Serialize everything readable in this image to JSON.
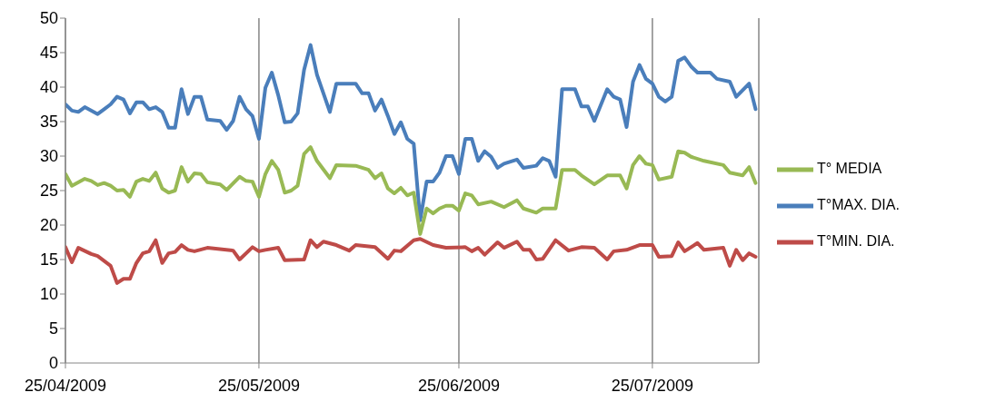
{
  "chart_data": {
    "type": "line",
    "xlim": [
      "2009-04-25",
      "2009-08-10T12:00"
    ],
    "xticks": [
      {
        "value": "2009-04-25",
        "label": "25/04/2009"
      },
      {
        "value": "2009-05-25",
        "label": "25/05/2009"
      },
      {
        "value": "2009-06-25",
        "label": "25/06/2009"
      },
      {
        "value": "2009-07-25",
        "label": "25/07/2009"
      }
    ],
    "ylim": [
      0,
      50
    ],
    "yticks": [
      0,
      5,
      10,
      15,
      20,
      25,
      30,
      35,
      40,
      45,
      50
    ],
    "grid": "x",
    "legend": "right",
    "marker": "none",
    "line_style": "solid",
    "series": [
      {
        "name": "T°MAX. DIA.",
        "color": "#4a7ebb",
        "x": [
          "2009-04-25",
          "2009-04-26",
          "2009-04-27",
          "2009-04-28",
          "2009-04-30",
          "2009-05-01",
          "2009-05-02",
          "2009-05-03",
          "2009-05-04",
          "2009-05-05",
          "2009-05-06",
          "2009-05-07",
          "2009-05-08",
          "2009-05-09",
          "2009-05-10",
          "2009-05-11",
          "2009-05-12",
          "2009-05-13",
          "2009-05-14",
          "2009-05-15",
          "2009-05-16",
          "2009-05-17",
          "2009-05-19",
          "2009-05-20",
          "2009-05-21",
          "2009-05-22",
          "2009-05-23",
          "2009-05-24",
          "2009-05-25",
          "2009-05-26",
          "2009-05-27",
          "2009-05-28",
          "2009-05-29",
          "2009-05-30",
          "2009-05-31",
          "2009-06-01",
          "2009-06-02",
          "2009-06-03",
          "2009-06-05",
          "2009-06-06",
          "2009-06-09",
          "2009-06-10",
          "2009-06-11",
          "2009-06-12",
          "2009-06-13",
          "2009-06-14",
          "2009-06-15",
          "2009-06-16",
          "2009-06-17",
          "2009-06-18",
          "2009-06-19",
          "2009-06-20",
          "2009-06-21",
          "2009-06-22",
          "2009-06-23",
          "2009-06-24",
          "2009-06-25",
          "2009-06-26",
          "2009-06-27",
          "2009-06-28",
          "2009-06-29",
          "2009-06-30",
          "2009-07-01",
          "2009-07-02",
          "2009-07-04",
          "2009-07-05",
          "2009-07-07",
          "2009-07-08",
          "2009-07-09",
          "2009-07-10",
          "2009-07-11",
          "2009-07-13",
          "2009-07-14",
          "2009-07-15",
          "2009-07-16",
          "2009-07-18",
          "2009-07-19",
          "2009-07-20",
          "2009-07-21",
          "2009-07-22",
          "2009-07-23",
          "2009-07-24",
          "2009-07-25",
          "2009-07-26",
          "2009-07-27",
          "2009-07-28",
          "2009-07-29",
          "2009-07-30",
          "2009-07-31",
          "2009-08-01",
          "2009-08-03",
          "2009-08-04",
          "2009-08-06",
          "2009-08-07",
          "2009-08-09",
          "2009-08-10"
        ],
        "values": [
          37.5,
          36.6,
          36.4,
          37.1,
          36.1,
          36.8,
          37.5,
          38.6,
          38.2,
          36.2,
          37.8,
          37.8,
          36.8,
          37.1,
          36.4,
          34.1,
          34.1,
          39.7,
          36.1,
          38.6,
          38.6,
          35.3,
          35.1,
          33.8,
          35.1,
          38.6,
          36.8,
          35.8,
          32.5,
          39.9,
          42.1,
          38.8,
          34.9,
          35.0,
          36.2,
          42.5,
          46.1,
          41.8,
          36.4,
          40.5,
          40.5,
          39.1,
          39.1,
          36.6,
          38.2,
          35.8,
          33.2,
          34.9,
          32.5,
          31.8,
          20.7,
          26.3,
          26.3,
          27.6,
          30.0,
          30.0,
          27.4,
          32.5,
          32.5,
          29.3,
          30.7,
          29.9,
          28.3,
          28.9,
          29.5,
          28.3,
          28.6,
          29.7,
          29.3,
          27.0,
          39.7,
          39.7,
          37.2,
          37.2,
          35.1,
          39.7,
          38.6,
          38.2,
          34.2,
          40.8,
          43.2,
          41.2,
          40.5,
          38.6,
          37.9,
          38.6,
          43.8,
          44.3,
          43.0,
          42.1,
          42.1,
          41.2,
          40.8,
          38.6,
          40.5,
          36.8
        ]
      },
      {
        "name": "T°MIN. DIA.",
        "color": "#be4b48",
        "x": [
          "2009-04-25",
          "2009-04-26",
          "2009-04-27",
          "2009-04-29",
          "2009-04-30",
          "2009-05-02",
          "2009-05-03",
          "2009-05-04",
          "2009-05-05",
          "2009-05-06",
          "2009-05-07",
          "2009-05-08",
          "2009-05-09",
          "2009-05-10",
          "2009-05-11",
          "2009-05-12",
          "2009-05-13",
          "2009-05-14",
          "2009-05-15",
          "2009-05-17",
          "2009-05-21",
          "2009-05-22",
          "2009-05-24",
          "2009-05-25",
          "2009-05-26",
          "2009-05-28",
          "2009-05-29",
          "2009-06-01",
          "2009-06-02",
          "2009-06-03",
          "2009-06-04",
          "2009-06-06",
          "2009-06-08",
          "2009-06-09",
          "2009-06-12",
          "2009-06-14",
          "2009-06-15",
          "2009-06-16",
          "2009-06-18",
          "2009-06-19",
          "2009-06-21",
          "2009-06-23",
          "2009-06-26",
          "2009-06-27",
          "2009-06-28",
          "2009-06-29",
          "2009-07-01",
          "2009-07-02",
          "2009-07-04",
          "2009-07-05",
          "2009-07-06",
          "2009-07-07",
          "2009-07-08",
          "2009-07-10",
          "2009-07-12",
          "2009-07-14",
          "2009-07-16",
          "2009-07-18",
          "2009-07-19",
          "2009-07-21",
          "2009-07-23",
          "2009-07-25",
          "2009-07-26",
          "2009-07-28",
          "2009-07-29",
          "2009-07-30",
          "2009-08-01",
          "2009-08-02",
          "2009-08-05",
          "2009-08-06",
          "2009-08-07",
          "2009-08-08",
          "2009-08-09",
          "2009-08-10"
        ],
        "values": [
          16.8,
          14.6,
          16.7,
          15.8,
          15.5,
          14.1,
          11.6,
          12.2,
          12.2,
          14.5,
          15.9,
          16.2,
          17.8,
          14.5,
          15.9,
          16.1,
          17.1,
          16.4,
          16.2,
          16.7,
          16.3,
          15.0,
          16.8,
          16.2,
          16.4,
          16.7,
          14.9,
          15.0,
          17.8,
          16.8,
          17.6,
          17.1,
          16.3,
          17.1,
          16.8,
          15.1,
          16.3,
          16.2,
          17.8,
          18.0,
          17.1,
          16.7,
          16.8,
          16.2,
          16.7,
          15.7,
          17.5,
          16.7,
          17.6,
          16.4,
          16.4,
          15.0,
          15.1,
          17.8,
          16.3,
          16.8,
          16.7,
          15.0,
          16.2,
          16.4,
          17.1,
          17.1,
          15.4,
          15.5,
          17.5,
          16.2,
          17.4,
          16.4,
          16.7,
          14.1,
          16.4,
          14.9,
          15.9,
          15.4
        ]
      },
      {
        "name": "T° MEDIA",
        "color": "#98b954",
        "x": [
          "2009-04-25",
          "2009-04-26",
          "2009-04-28",
          "2009-04-29",
          "2009-04-30",
          "2009-05-01",
          "2009-05-02",
          "2009-05-03",
          "2009-05-04",
          "2009-05-05",
          "2009-05-06",
          "2009-05-07",
          "2009-05-08",
          "2009-05-09",
          "2009-05-10",
          "2009-05-11",
          "2009-05-12",
          "2009-05-13",
          "2009-05-14",
          "2009-05-15",
          "2009-05-16",
          "2009-05-17",
          "2009-05-19",
          "2009-05-20",
          "2009-05-22",
          "2009-05-23",
          "2009-05-24",
          "2009-05-25",
          "2009-05-26",
          "2009-05-27",
          "2009-05-28",
          "2009-05-29",
          "2009-05-30",
          "2009-05-31",
          "2009-06-01",
          "2009-06-02",
          "2009-06-03",
          "2009-06-05",
          "2009-06-06",
          "2009-06-09",
          "2009-06-11",
          "2009-06-12",
          "2009-06-13",
          "2009-06-14",
          "2009-06-15",
          "2009-06-16",
          "2009-06-17",
          "2009-06-18",
          "2009-06-19",
          "2009-06-20",
          "2009-06-21",
          "2009-06-22",
          "2009-06-23",
          "2009-06-24",
          "2009-06-25",
          "2009-06-26",
          "2009-06-27",
          "2009-06-28",
          "2009-06-30",
          "2009-07-02",
          "2009-07-04",
          "2009-07-05",
          "2009-07-07",
          "2009-07-08",
          "2009-07-10",
          "2009-07-11",
          "2009-07-13",
          "2009-07-14",
          "2009-07-16",
          "2009-07-18",
          "2009-07-20",
          "2009-07-21",
          "2009-07-22",
          "2009-07-23",
          "2009-07-24",
          "2009-07-25",
          "2009-07-26",
          "2009-07-28",
          "2009-07-29",
          "2009-07-30",
          "2009-07-31",
          "2009-08-02",
          "2009-08-05",
          "2009-08-06",
          "2009-08-08",
          "2009-08-09",
          "2009-08-10"
        ],
        "values": [
          27.4,
          25.7,
          26.7,
          26.4,
          25.8,
          26.1,
          25.7,
          25.0,
          25.1,
          24.1,
          26.3,
          26.7,
          26.4,
          27.6,
          25.3,
          24.7,
          25.0,
          28.4,
          26.3,
          27.5,
          27.4,
          26.2,
          25.9,
          25.1,
          27.0,
          26.4,
          26.3,
          24.1,
          27.4,
          29.3,
          28.0,
          24.7,
          25.0,
          25.7,
          30.3,
          31.3,
          29.3,
          26.8,
          28.7,
          28.6,
          28.0,
          26.8,
          27.5,
          25.3,
          24.6,
          25.4,
          24.3,
          24.7,
          18.7,
          22.4,
          21.7,
          22.4,
          22.8,
          22.8,
          22.1,
          24.6,
          24.3,
          23.0,
          23.4,
          22.6,
          23.6,
          22.4,
          21.8,
          22.4,
          22.4,
          28.0,
          28.0,
          27.2,
          25.9,
          27.2,
          27.2,
          25.3,
          28.7,
          30.0,
          28.9,
          28.7,
          26.6,
          27.0,
          30.7,
          30.5,
          29.9,
          29.3,
          28.7,
          27.6,
          27.2,
          28.4,
          26.1
        ]
      }
    ]
  }
}
